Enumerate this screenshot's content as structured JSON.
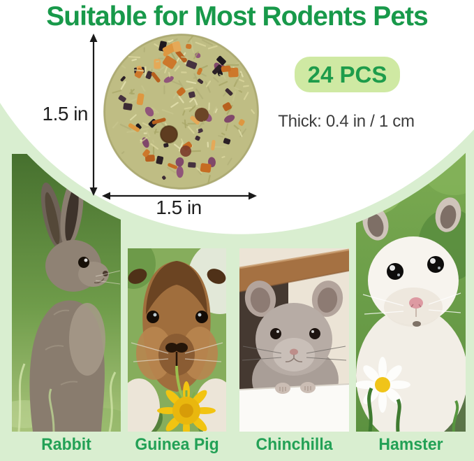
{
  "title": "Suitable for Most Rodents Pets",
  "badge": {
    "label": "24 PCS"
  },
  "thickness_label": "Thick: 0.4 in / 1 cm",
  "dimensions": {
    "height_label": "1.5 in",
    "width_label": "1.5 in"
  },
  "animals": [
    {
      "label": "Rabbit"
    },
    {
      "label": "Guinea Pig"
    },
    {
      "label": "Chinchilla"
    },
    {
      "label": "Hamster"
    }
  ],
  "colors": {
    "title_green": "#18994a",
    "label_green": "#23a156",
    "badge_bg": "#cfe9a3",
    "badge_text": "#1e9c4b",
    "panel_green": "#d9eed0",
    "dimension_ink": "#1f1f1f",
    "thickness_ink": "#3d3d3d",
    "treat_base": "#bfbd84",
    "treat_orange": "#cd782b",
    "treat_dark": "#2b2026"
  }
}
